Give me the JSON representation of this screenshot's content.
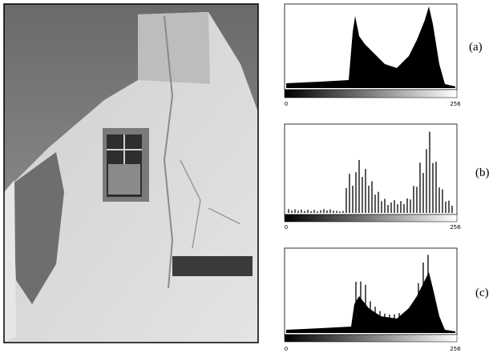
{
  "figure": {
    "panels": [
      {
        "label": "(a)",
        "axis_min": "0",
        "axis_max": "256"
      },
      {
        "label": "(b)",
        "axis_min": "0",
        "axis_max": "256"
      },
      {
        "label": "(c)",
        "axis_min": "0",
        "axis_max": "256"
      }
    ]
  }
}
